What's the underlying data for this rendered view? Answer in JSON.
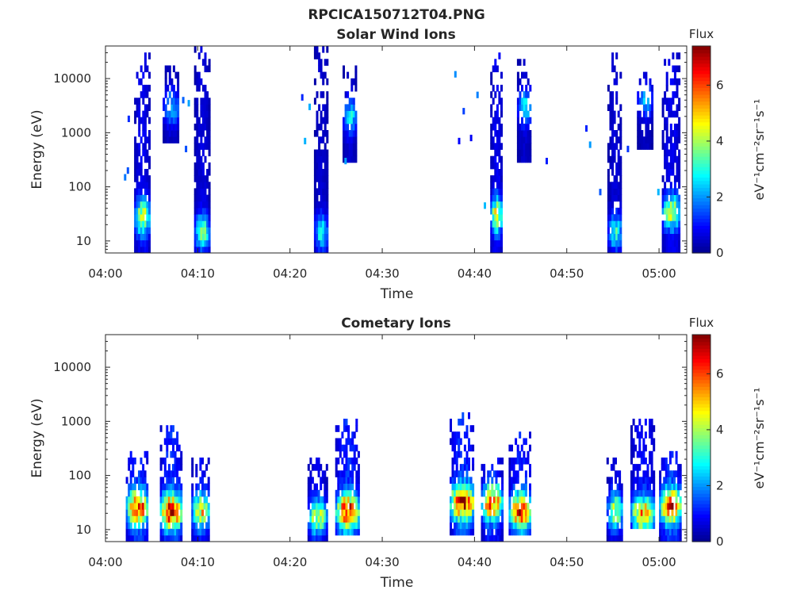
{
  "figure": {
    "title": "RPCICA150712T04.PNG"
  },
  "chart_data": [
    {
      "type": "heatmap",
      "title": "Solar Wind Ions",
      "xlabel": "Time",
      "ylabel": "Energy (eV)",
      "y_scale": "log",
      "xlim_min": [
        0,
        63
      ],
      "ylim": [
        6,
        40000
      ],
      "x_ticks": [
        {
          "value": 0,
          "label": "04:00"
        },
        {
          "value": 10,
          "label": "04:10"
        },
        {
          "value": 20,
          "label": "04:20"
        },
        {
          "value": 30,
          "label": "04:30"
        },
        {
          "value": 40,
          "label": "04:40"
        },
        {
          "value": 50,
          "label": "04:50"
        },
        {
          "value": 60,
          "label": "05:00"
        }
      ],
      "y_ticks": [
        {
          "value": 10,
          "label": "10"
        },
        {
          "value": 100,
          "label": "100"
        },
        {
          "value": 1000,
          "label": "1000"
        },
        {
          "value": 10000,
          "label": "10000"
        }
      ],
      "colorbar": {
        "title": "Flux",
        "label": "eV⁻¹cm⁻²sr⁻¹s⁻¹",
        "range": [
          0,
          7.4
        ],
        "ticks": [
          {
            "value": 0,
            "label": "0"
          },
          {
            "value": 2,
            "label": "2"
          },
          {
            "value": 4,
            "label": "4"
          },
          {
            "value": 6,
            "label": "6"
          }
        ]
      },
      "colormap": [
        "#00008f",
        "#0000ff",
        "#0080ff",
        "#00ffff",
        "#80ff80",
        "#ffff00",
        "#ff8000",
        "#ff0000",
        "#800000"
      ],
      "bursts": [
        {
          "t0": 3.1,
          "t1": 4.7,
          "e_lo": 6,
          "e_hi": 28000,
          "peak_flux": 4.6,
          "peak_e": 28
        },
        {
          "t0": 6.2,
          "t1": 7.9,
          "e_lo": 700,
          "e_hi": 20000,
          "peak_flux": 2.5,
          "peak_e": 3000
        },
        {
          "t0": 9.6,
          "t1": 11.2,
          "e_lo": 6,
          "e_hi": 38000,
          "peak_flux": 3.6,
          "peak_e": 15
        },
        {
          "t0": 22.6,
          "t1": 24.0,
          "e_lo": 6,
          "e_hi": 38000,
          "peak_flux": 3.0,
          "peak_e": 15
        },
        {
          "t0": 25.7,
          "t1": 27.1,
          "e_lo": 300,
          "e_hi": 18000,
          "peak_flux": 2.8,
          "peak_e": 2000
        },
        {
          "t0": 41.7,
          "t1": 42.9,
          "e_lo": 6,
          "e_hi": 32000,
          "peak_flux": 4.8,
          "peak_e": 30
        },
        {
          "t0": 44.6,
          "t1": 46.1,
          "e_lo": 300,
          "e_hi": 22000,
          "peak_flux": 2.8,
          "peak_e": 3000
        },
        {
          "t0": 54.4,
          "t1": 55.9,
          "e_lo": 6,
          "e_hi": 30000,
          "peak_flux": 3.2,
          "peak_e": 15
        },
        {
          "t0": 57.6,
          "t1": 59.2,
          "e_lo": 500,
          "e_hi": 15000,
          "peak_flux": 2.3,
          "peak_e": 4000
        },
        {
          "t0": 60.3,
          "t1": 62.2,
          "e_lo": 6,
          "e_hi": 28000,
          "peak_flux": 4.5,
          "peak_e": 35
        }
      ],
      "scatter": [
        {
          "t": 2.0,
          "e": 150
        },
        {
          "t": 2.3,
          "e": 200
        },
        {
          "t": 2.4,
          "e": 1800
        },
        {
          "t": 8.3,
          "e": 4000
        },
        {
          "t": 8.6,
          "e": 500
        },
        {
          "t": 8.9,
          "e": 3500
        },
        {
          "t": 21.2,
          "e": 4500
        },
        {
          "t": 21.5,
          "e": 700
        },
        {
          "t": 22.0,
          "e": 3000
        },
        {
          "t": 25.9,
          "e": 300
        },
        {
          "t": 37.8,
          "e": 12000
        },
        {
          "t": 38.2,
          "e": 700
        },
        {
          "t": 38.7,
          "e": 2500
        },
        {
          "t": 39.5,
          "e": 800
        },
        {
          "t": 40.2,
          "e": 5000
        },
        {
          "t": 41.0,
          "e": 45
        },
        {
          "t": 47.7,
          "e": 300
        },
        {
          "t": 52.0,
          "e": 1200
        },
        {
          "t": 52.4,
          "e": 600
        },
        {
          "t": 53.5,
          "e": 80
        },
        {
          "t": 56.5,
          "e": 500
        },
        {
          "t": 59.8,
          "e": 80
        }
      ]
    },
    {
      "type": "heatmap",
      "title": "Cometary Ions",
      "xlabel": "Time",
      "ylabel": "Energy (eV)",
      "y_scale": "log",
      "xlim_min": [
        0,
        63
      ],
      "ylim": [
        6,
        40000
      ],
      "x_ticks": [
        {
          "value": 0,
          "label": "04:00"
        },
        {
          "value": 10,
          "label": "04:10"
        },
        {
          "value": 20,
          "label": "04:20"
        },
        {
          "value": 30,
          "label": "04:30"
        },
        {
          "value": 40,
          "label": "04:40"
        },
        {
          "value": 50,
          "label": "04:50"
        },
        {
          "value": 60,
          "label": "05:00"
        }
      ],
      "y_ticks": [
        {
          "value": 10,
          "label": "10"
        },
        {
          "value": 100,
          "label": "100"
        },
        {
          "value": 1000,
          "label": "1000"
        },
        {
          "value": 10000,
          "label": "10000"
        }
      ],
      "colorbar": {
        "title": "Flux",
        "label": "eV⁻¹cm⁻²sr⁻¹s⁻¹",
        "range": [
          0,
          7.4
        ],
        "ticks": [
          {
            "value": 0,
            "label": "0"
          },
          {
            "value": 2,
            "label": "2"
          },
          {
            "value": 4,
            "label": "4"
          },
          {
            "value": 6,
            "label": "6"
          }
        ]
      },
      "colormap": [
        "#00008f",
        "#0000ff",
        "#0080ff",
        "#00ffff",
        "#80ff80",
        "#ffff00",
        "#ff8000",
        "#ff0000",
        "#800000"
      ],
      "bursts": [
        {
          "t0": 2.2,
          "t1": 4.6,
          "e_lo": 6,
          "e_hi": 260,
          "peak_flux": 6.5,
          "peak_e": 26
        },
        {
          "t0": 5.9,
          "t1": 8.2,
          "e_lo": 6,
          "e_hi": 800,
          "peak_flux": 7.1,
          "peak_e": 22
        },
        {
          "t0": 9.3,
          "t1": 11.2,
          "e_lo": 6,
          "e_hi": 210,
          "peak_flux": 5.0,
          "peak_e": 22
        },
        {
          "t0": 21.9,
          "t1": 23.9,
          "e_lo": 6,
          "e_hi": 210,
          "peak_flux": 4.5,
          "peak_e": 18
        },
        {
          "t0": 24.9,
          "t1": 27.4,
          "e_lo": 8,
          "e_hi": 1200,
          "peak_flux": 6.9,
          "peak_e": 22
        },
        {
          "t0": 37.3,
          "t1": 39.9,
          "e_lo": 8,
          "e_hi": 1400,
          "peak_flux": 7.2,
          "peak_e": 32
        },
        {
          "t0": 40.7,
          "t1": 42.9,
          "e_lo": 6,
          "e_hi": 220,
          "peak_flux": 6.3,
          "peak_e": 32
        },
        {
          "t0": 43.7,
          "t1": 46.1,
          "e_lo": 8,
          "e_hi": 700,
          "peak_flux": 6.7,
          "peak_e": 22
        },
        {
          "t0": 54.3,
          "t1": 56.0,
          "e_lo": 6,
          "e_hi": 220,
          "peak_flux": 4.3,
          "peak_e": 22
        },
        {
          "t0": 56.9,
          "t1": 59.4,
          "e_lo": 10,
          "e_hi": 1200,
          "peak_flux": 5.4,
          "peak_e": 20
        },
        {
          "t0": 60.0,
          "t1": 62.3,
          "e_lo": 6,
          "e_hi": 300,
          "peak_flux": 6.9,
          "peak_e": 28
        }
      ],
      "scatter": []
    }
  ]
}
